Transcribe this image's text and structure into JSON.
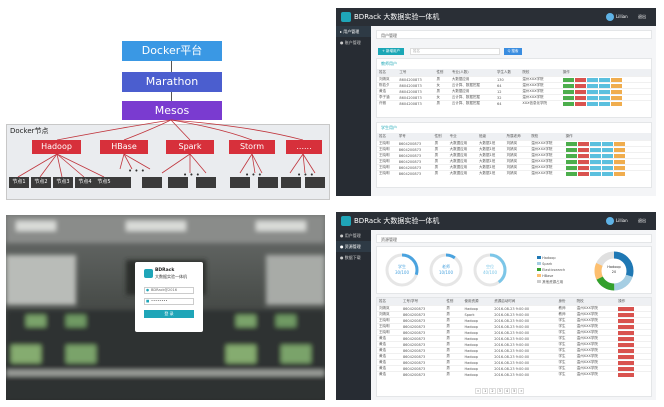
{
  "architecture": {
    "docker_platform": "Docker平台",
    "marathon": "Marathon",
    "mesos": "Mesos",
    "docker_node_label": "Docker节点",
    "services": [
      "Hadoop",
      "HBase",
      "Spark",
      "Storm",
      "......"
    ],
    "hadoop_nodes": [
      "节点1",
      "节点2",
      "节点3",
      "节点4",
      "节点5"
    ],
    "ellipsis": "• • •"
  },
  "user_screen": {
    "app_title": "BDRack 大数据实验一体机",
    "user": "Lillian",
    "exit": "退出",
    "sidebar": [
      "用户管理",
      "账户管理"
    ],
    "breadcrumb": "用户管理",
    "add_button": "+ 新增用户",
    "search_placeholder": "姓名",
    "search_button": "Q 搜索",
    "section1_title": "教师用户",
    "section2_title": "学生用户",
    "teacher_headers": [
      "姓名",
      "工号",
      "性别",
      "专业(人数)",
      "学生人数",
      "院校",
      "操作"
    ],
    "teacher_rows": [
      [
        "刘婧岚",
        "8604200873",
        "男",
        "大数据应用",
        "130",
        "温州XXX学院"
      ],
      [
        "陈若夕",
        "8604200873",
        "女",
        "云计算、数据挖掘",
        "64",
        "温州XXX学院"
      ],
      [
        "黄浩",
        "8604200873",
        "男",
        "大数据应用",
        "12",
        "温州XXX学院"
      ],
      [
        "李子涵",
        "8604200873",
        "女",
        "云计算、数据挖掘",
        "32",
        "温州XXX学院"
      ],
      [
        "许雅",
        "8604200873",
        "男",
        "云计算、数据挖掘",
        "64",
        "XXX信息化学院"
      ]
    ],
    "student_headers": [
      "姓名",
      "学号",
      "性别",
      "专业",
      "班级",
      "所属老师",
      "院校",
      "操作"
    ],
    "student_rows": [
      [
        "王晓明",
        "8604200873",
        "男",
        "大数据应用",
        "大数据1班",
        "刘婧岚",
        "温州XXX学院"
      ],
      [
        "王晓明",
        "8604200873",
        "男",
        "大数据应用",
        "大数据1班",
        "刘婧岚",
        "温州XXX学院"
      ],
      [
        "王晓明",
        "8604200873",
        "男",
        "大数据应用",
        "大数据1班",
        "刘婧岚",
        "温州XXX学院"
      ],
      [
        "王晓明",
        "8604200873",
        "男",
        "大数据应用",
        "大数据1班",
        "刘婧岚",
        "温州XXX学院"
      ],
      [
        "王晓明",
        "8604200873",
        "男",
        "大数据应用",
        "大数据1班",
        "刘婧岚",
        "温州XXX学院"
      ],
      [
        "王晓明",
        "8604200873",
        "男",
        "大数据应用",
        "大数据1班",
        "刘婧岚",
        "温州XXX学院"
      ]
    ]
  },
  "login": {
    "brand": "BDRack",
    "subtitle": "大数据实验一体机",
    "username_value": "BDRack@2016",
    "password_value": "••••••••",
    "login_button": "登 录"
  },
  "resource_screen": {
    "app_title": "BDRack 大数据实验一体机",
    "user": "Lillian",
    "exit": "退出",
    "sidebar": [
      "用户管理",
      "资源管理",
      "数据下载"
    ],
    "breadcrumb": "资源管理",
    "gauges": [
      {
        "label": "学生",
        "value": "30/100",
        "fraction": 0.3,
        "color": "#4aa3df"
      },
      {
        "label": "老师",
        "value": "10/100",
        "fraction": 0.1,
        "color": "#4aa3df"
      },
      {
        "label": "空位",
        "value": "40/100",
        "fraction": 0.4,
        "color": "#7cc6e8"
      }
    ],
    "legend": [
      "Hadoop",
      "Spark",
      "Elasticsearch",
      "HBase",
      "其他资源占用"
    ],
    "donut_center": [
      "Hadoop",
      "20"
    ],
    "table_headers": [
      "姓名",
      "工号/学号",
      "性别",
      "使用资源",
      "资源启动时间",
      "身份",
      "院校",
      "操作"
    ],
    "table_rows": [
      [
        "刘婧岚",
        "8604200873",
        "男",
        "Hadoop",
        "2016-08-23 9:00:00",
        "教师",
        "温州XXX学院"
      ],
      [
        "刘婧岚",
        "8604200873",
        "男",
        "Spark",
        "2016-08-23 9:00:00",
        "教师",
        "温州XXX学院"
      ],
      [
        "王晓明",
        "8604200873",
        "男",
        "Hadoop",
        "2016-08-23 9:00:00",
        "学生",
        "温州XXX学院"
      ],
      [
        "王晓明",
        "8604200873",
        "男",
        "Hadoop",
        "2016-08-23 9:00:00",
        "学生",
        "温州XXX学院"
      ],
      [
        "王晓明",
        "8604200873",
        "男",
        "Hadoop",
        "2016-08-23 9:00:00",
        "学生",
        "温州XXX学院"
      ],
      [
        "黄浩",
        "8604200873",
        "男",
        "Hadoop",
        "2016-08-23 9:00:00",
        "学生",
        "温州XXX学院"
      ],
      [
        "黄浩",
        "8604200873",
        "男",
        "Hadoop",
        "2016-08-23 9:00:00",
        "学生",
        "温州XXX学院"
      ],
      [
        "黄浩",
        "8604200873",
        "男",
        "Hadoop",
        "2016-08-23 9:00:00",
        "学生",
        "温州XXX学院"
      ],
      [
        "黄浩",
        "8604200873",
        "男",
        "Hadoop",
        "2016-08-23 9:00:00",
        "学生",
        "温州XXX学院"
      ],
      [
        "黄浩",
        "8604200873",
        "男",
        "Hadoop",
        "2016-08-23 9:00:00",
        "学生",
        "温州XXX学院"
      ],
      [
        "黄浩",
        "8604200873",
        "男",
        "Hadoop",
        "2016-08-23 9:00:00",
        "学生",
        "温州XXX学院"
      ],
      [
        "黄浩",
        "8604200873",
        "男",
        "Hadoop",
        "2016-08-23 9:00:00",
        "学生",
        "温州XXX学院"
      ]
    ],
    "pagination": [
      "«",
      "1",
      "2",
      "3",
      "4",
      "5",
      "»"
    ]
  }
}
